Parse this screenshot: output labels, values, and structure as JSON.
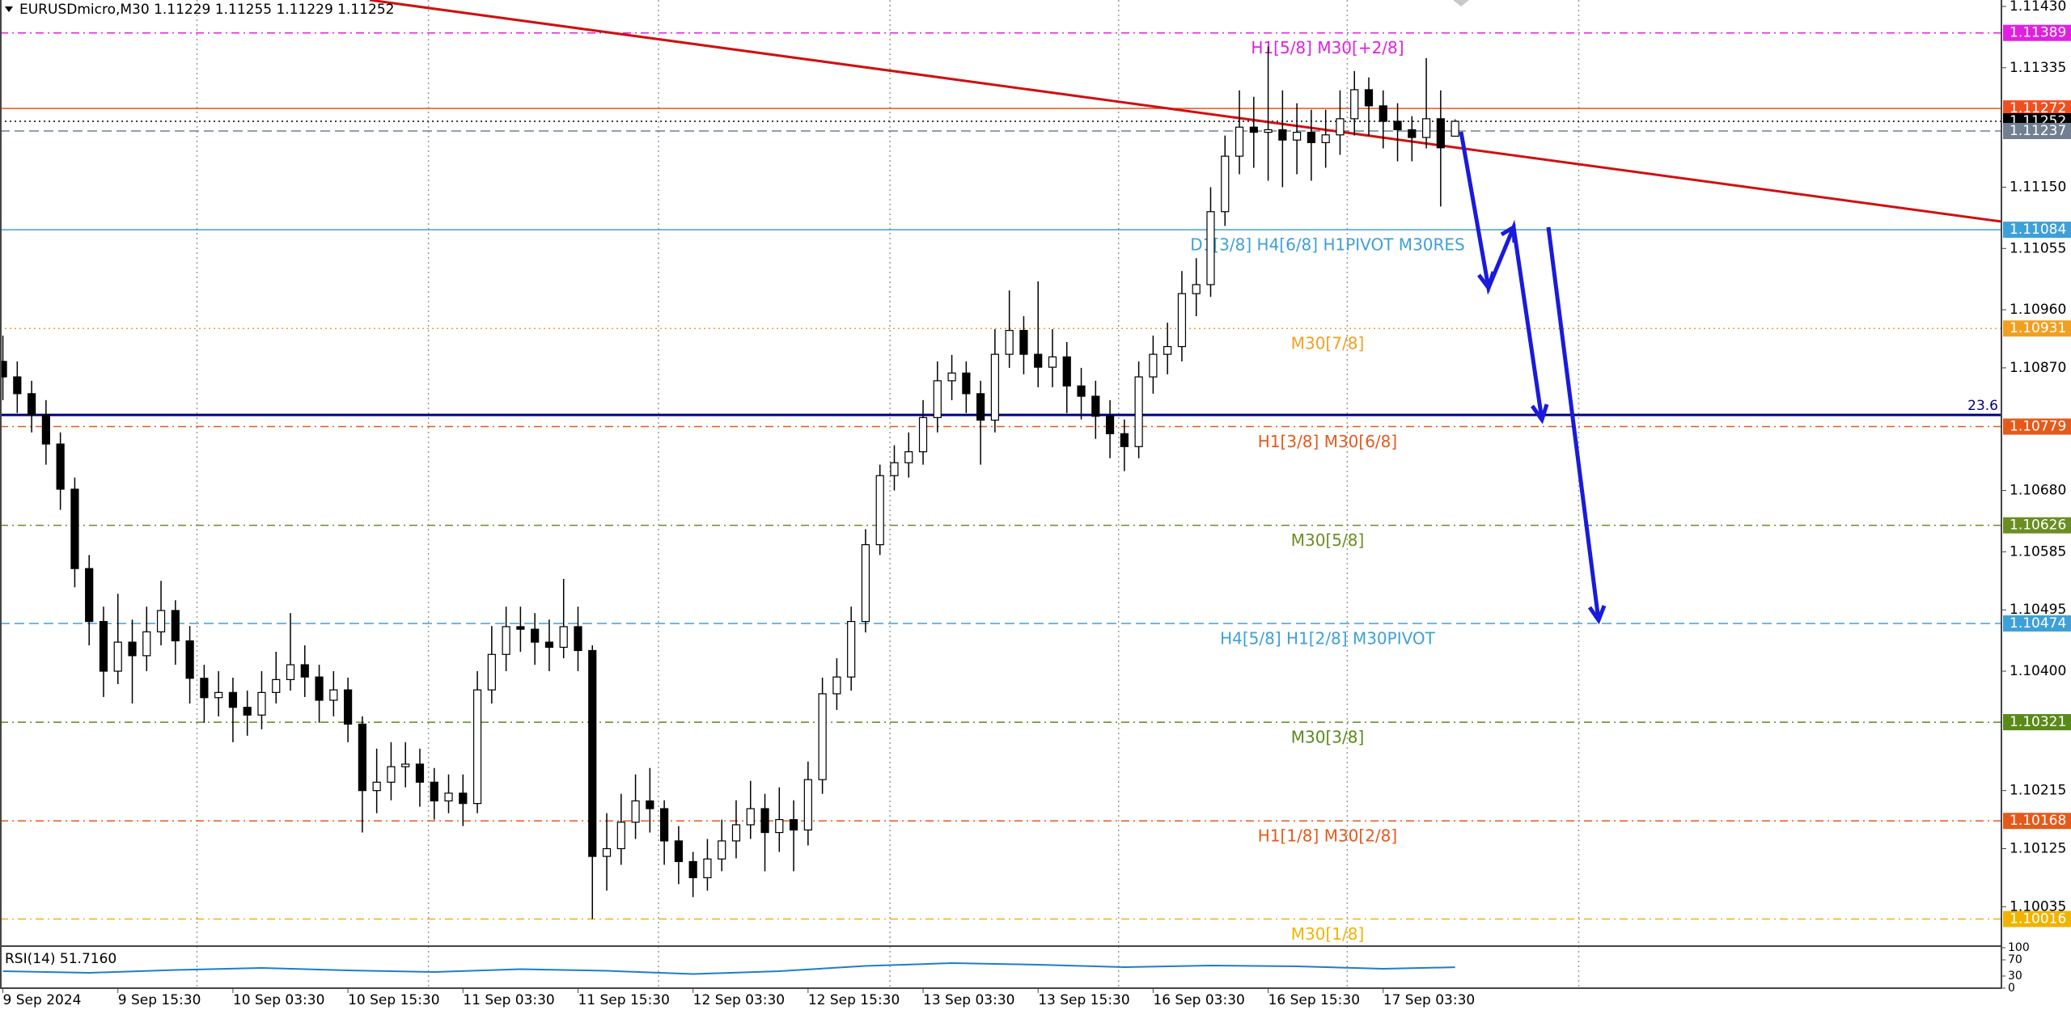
{
  "chart_data": {
    "type": "candlestick",
    "title": "EURUSDmicro,M30  1.11229 1.11255 1.11229 1.11252",
    "xlim": [
      -0.2,
      139
    ],
    "xticks": [
      {
        "value": 0,
        "label": "9 Sep 2024"
      },
      {
        "value": 8,
        "label": "9 Sep 15:30"
      },
      {
        "value": 16,
        "label": "10 Sep 03:30"
      },
      {
        "value": 24,
        "label": "10 Sep 15:30"
      },
      {
        "value": 32,
        "label": "11 Sep 03:30"
      },
      {
        "value": 40,
        "label": "11 Sep 15:30"
      },
      {
        "value": 48,
        "label": "12 Sep 03:30"
      },
      {
        "value": 56,
        "label": "12 Sep 15:30"
      },
      {
        "value": 64,
        "label": "13 Sep 03:30"
      },
      {
        "value": 72,
        "label": "13 Sep 15:30"
      },
      {
        "value": 80,
        "label": "16 Sep 03:30"
      },
      {
        "value": 88,
        "label": "16 Sep 15:30"
      },
      {
        "value": 96,
        "label": "17 Sep 03:30"
      }
    ],
    "vgrid": [
      13.5,
      29.6,
      45.6,
      61.7,
      77.6,
      93.5,
      109.6
    ],
    "ylim": [
      1.09974,
      1.1144
    ],
    "yticks": [
      {
        "value": 1.1143,
        "label": "1.11430"
      },
      1.11335,
      {
        "value": 1.1115,
        "label": "1.11150"
      },
      1.11055,
      {
        "value": 1.1096,
        "label": "1.10960"
      },
      {
        "value": 1.1087,
        "label": "1.10870"
      },
      {
        "value": 1.1068,
        "label": "1.10680"
      },
      1.10585,
      1.10495,
      {
        "value": 1.104,
        "label": "1.10400"
      },
      1.10215,
      1.10125,
      1.10035
    ],
    "open": [
      1.1088,
      1.10856,
      1.1083,
      1.10797,
      1.10752,
      1.10682,
      1.10559,
      1.10477,
      1.104,
      1.10445,
      1.10424,
      1.10461,
      1.10494,
      1.10447,
      1.10389,
      1.10359,
      1.10367,
      1.10344,
      1.10332,
      1.10367,
      1.10387,
      1.1041,
      1.10391,
      1.10355,
      1.10371,
      1.10318,
      1.10215,
      1.10228,
      1.10252,
      1.10256,
      1.10228,
      1.10199,
      1.10211,
      1.10195,
      1.10371,
      1.10426,
      1.10469,
      1.10465,
      1.10445,
      1.10437,
      1.10469,
      1.10432,
      1.10113,
      1.10125,
      1.10166,
      1.10199,
      1.10187,
      1.10137,
      1.10105,
      1.1008,
      1.10109,
      1.10137,
      1.10162,
      1.10187,
      1.1015,
      1.1017,
      1.10154,
      1.10232,
      1.10365,
      1.10391,
      1.10477,
      1.10596,
      1.10703,
      1.10723,
      1.1074,
      1.10793,
      1.1085,
      1.10862,
      1.1083,
      1.10789,
      1.10891,
      1.10928,
      1.10891,
      1.10871,
      1.10887,
      1.10842,
      1.10826,
      1.10795,
      1.10768,
      1.10748,
      1.10856,
      1.10891,
      1.10903,
      1.10985,
      1.10999,
      1.11112,
      1.11198,
      1.11243,
      1.11235,
      1.11239,
      1.11223,
      1.11235,
      1.11219,
      1.11231,
      1.11256,
      1.11301,
      1.11276,
      1.11252,
      1.11239,
      1.11227,
      1.11256,
      1.11229
    ],
    "high": [
      1.1092,
      1.1088,
      1.1085,
      1.1082,
      1.1077,
      1.107,
      1.1058,
      1.105,
      1.1052,
      1.1048,
      1.105,
      1.1054,
      1.1051,
      1.1047,
      1.1041,
      1.104,
      1.1039,
      1.1037,
      1.104,
      1.1043,
      1.1049,
      1.1044,
      1.1041,
      1.104,
      1.1039,
      1.1033,
      1.1028,
      1.1029,
      1.1029,
      1.1028,
      1.1025,
      1.1024,
      1.1024,
      1.104,
      1.1047,
      1.105,
      1.105,
      1.1049,
      1.1048,
      1.10543,
      1.105,
      1.1044,
      1.1018,
      1.1021,
      1.1024,
      1.1025,
      1.102,
      1.1016,
      1.1012,
      1.1014,
      1.1017,
      1.102,
      1.1023,
      1.1021,
      1.1022,
      1.102,
      1.1026,
      1.1039,
      1.1042,
      1.105,
      1.1062,
      1.1072,
      1.1075,
      1.1077,
      1.1082,
      1.1088,
      1.1089,
      1.1088,
      1.1085,
      1.1093,
      1.1099,
      1.1095,
      1.11004,
      1.1093,
      1.1091,
      1.1087,
      1.1085,
      1.1082,
      1.1079,
      1.1088,
      1.1092,
      1.1094,
      1.1102,
      1.1104,
      1.1115,
      1.1123,
      1.113,
      1.1129,
      1.11368,
      1.113,
      1.1128,
      1.1127,
      1.1127,
      1.113,
      1.1133,
      1.1132,
      1.113,
      1.1128,
      1.1126,
      1.1135,
      1.113,
      1.11255
    ],
    "low": [
      1.1082,
      1.108,
      1.1077,
      1.1072,
      1.1065,
      1.1053,
      1.1044,
      1.1036,
      1.1038,
      1.1035,
      1.104,
      1.1044,
      1.1041,
      1.1035,
      1.1032,
      1.1033,
      1.1029,
      1.103,
      1.1031,
      1.1035,
      1.1037,
      1.1036,
      1.1032,
      1.1033,
      1.1029,
      1.1015,
      1.1018,
      1.102,
      1.1022,
      1.1019,
      1.1017,
      1.1018,
      1.1016,
      1.1018,
      1.1035,
      1.104,
      1.1043,
      1.1041,
      1.104,
      1.1042,
      1.104,
      1.10016,
      1.1006,
      1.101,
      1.1014,
      1.1015,
      1.101,
      1.1007,
      1.1005,
      1.1006,
      1.1009,
      1.1011,
      1.1014,
      1.1009,
      1.1012,
      1.1009,
      1.1013,
      1.1021,
      1.1034,
      1.1037,
      1.1046,
      1.1058,
      1.1068,
      1.107,
      1.1072,
      1.1077,
      1.1082,
      1.108,
      1.1072,
      1.1077,
      1.1087,
      1.1086,
      1.1084,
      1.1084,
      1.108,
      1.1079,
      1.1076,
      1.1073,
      1.1071,
      1.1073,
      1.1083,
      1.1086,
      1.1088,
      1.1095,
      1.1098,
      1.1109,
      1.1117,
      1.1118,
      1.1116,
      1.1115,
      1.1117,
      1.1116,
      1.1118,
      1.112,
      1.1123,
      1.1123,
      1.1121,
      1.1119,
      1.1119,
      1.1121,
      1.1112,
      1.11229
    ],
    "close": [
      1.10856,
      1.1083,
      1.10797,
      1.10752,
      1.10682,
      1.10559,
      1.10477,
      1.104,
      1.10445,
      1.10424,
      1.10461,
      1.10494,
      1.10447,
      1.10389,
      1.10359,
      1.10367,
      1.10344,
      1.10332,
      1.10367,
      1.10387,
      1.1041,
      1.10391,
      1.10355,
      1.10371,
      1.10318,
      1.10215,
      1.10228,
      1.10252,
      1.10256,
      1.10228,
      1.10199,
      1.10211,
      1.10195,
      1.10371,
      1.10426,
      1.10469,
      1.10465,
      1.10445,
      1.10437,
      1.10469,
      1.10432,
      1.10113,
      1.10125,
      1.10166,
      1.10199,
      1.10187,
      1.10137,
      1.10105,
      1.1008,
      1.10109,
      1.10137,
      1.10162,
      1.10187,
      1.1015,
      1.1017,
      1.10154,
      1.10232,
      1.10365,
      1.10391,
      1.10477,
      1.10596,
      1.10703,
      1.10723,
      1.1074,
      1.10793,
      1.1085,
      1.10862,
      1.1083,
      1.10789,
      1.10891,
      1.10928,
      1.10891,
      1.10871,
      1.10887,
      1.10842,
      1.10826,
      1.10795,
      1.10768,
      1.10748,
      1.10856,
      1.10891,
      1.10903,
      1.10985,
      1.10999,
      1.11112,
      1.11198,
      1.11243,
      1.11235,
      1.11239,
      1.11223,
      1.11235,
      1.11219,
      1.11231,
      1.11256,
      1.11301,
      1.11276,
      1.11252,
      1.11239,
      1.11227,
      1.11256,
      1.11211,
      1.11252
    ],
    "levels": [
      {
        "price": 1.11389,
        "color": "#e020e0",
        "style": "dashdot",
        "label": "H1[5/8] M30[+2/8]"
      },
      {
        "price": 1.11272,
        "color": "#f05020",
        "style": "solid"
      },
      {
        "price": 1.11252,
        "color": "#000000",
        "style": "dotted"
      },
      {
        "price": 1.11237,
        "color": "#708090",
        "style": "dashed"
      },
      {
        "price": 1.11084,
        "color": "#3ea0d8",
        "style": "solid",
        "label": "D1[3/8] H4[6/8] H1PIVOT M30RES"
      },
      {
        "price": 1.10931,
        "color": "#f0a020",
        "style": "dotted",
        "label": "M30[7/8]"
      },
      {
        "price": 1.10779,
        "color": "#e55a1b",
        "style": "dashdot",
        "label": "H1[3/8] M30[6/8]"
      },
      {
        "price": 1.10626,
        "color": "#6b8e23",
        "style": "dashdot",
        "label": "M30[5/8]"
      },
      {
        "price": 1.10474,
        "color": "#3ea0d8",
        "style": "dashed",
        "label": "H4[5/8] H1[2/8] M30PIVOT"
      },
      {
        "price": 1.10321,
        "color": "#5a8a1a",
        "style": "dashdot",
        "label": "M30[3/8]"
      },
      {
        "price": 1.10168,
        "color": "#e55a1b",
        "style": "dashdot",
        "label": "H1[1/8] M30[2/8]"
      },
      {
        "price": 1.10016,
        "color": "#f0b400",
        "style": "dashdot",
        "label": "M30[1/8]"
      }
    ],
    "fib": {
      "label": 23.6,
      "price": 1.10797,
      "color": "#000080"
    },
    "rsi": {
      "title": "RSI(14) 51.7160",
      "color": "#1e7ec8",
      "ylim": [
        0,
        100
      ],
      "yticks": [
        100,
        70,
        30,
        0
      ],
      "x": [
        0,
        6,
        12,
        18,
        24,
        30,
        36,
        42,
        48,
        54,
        60,
        66,
        72,
        78,
        84,
        90,
        96,
        101
      ],
      "values": [
        42,
        38,
        45,
        50,
        44,
        40,
        47,
        43,
        35,
        42,
        55,
        62,
        58,
        52,
        56,
        54,
        48,
        51.716
      ]
    }
  }
}
